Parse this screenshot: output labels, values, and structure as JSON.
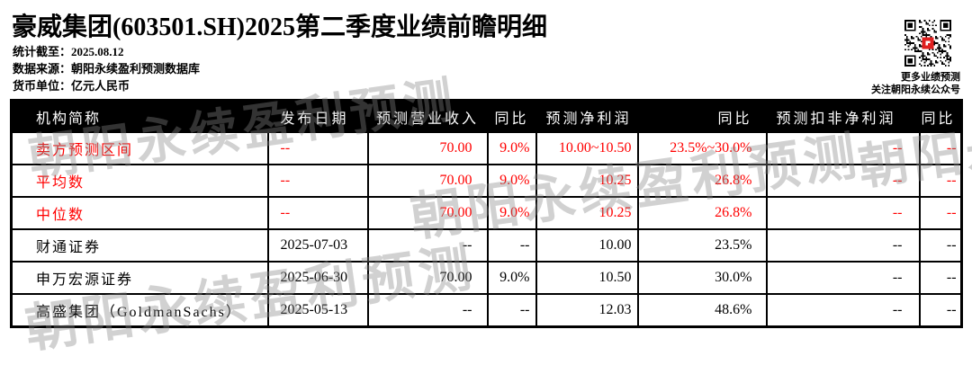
{
  "header": {
    "title": "豪威集团(603501.SH)2025第二季度业绩前瞻明细",
    "meta": [
      {
        "label": "统计截至：",
        "value": "2025.08.12"
      },
      {
        "label": "数据来源：",
        "value": "朝阳永续盈利预测数据库"
      },
      {
        "label": "货币单位：",
        "value": "亿元人民币"
      }
    ],
    "qr": {
      "caption1": "更多业绩预测",
      "caption2": "关注朝阳永续公众号"
    }
  },
  "watermark": {
    "text": "朝阳永续盈利预测"
  },
  "table": {
    "columns": [
      "机构简称",
      "发布日期",
      "预测营业收入",
      "同比",
      "预测净利润",
      "同比",
      "预测扣非净利润",
      "同比"
    ],
    "rows": [
      {
        "highlight": true,
        "cells": [
          "卖方预测区间",
          "--",
          "70.00",
          "9.0%",
          "10.00~10.50",
          "23.5%~30.0%",
          "--",
          "--"
        ]
      },
      {
        "highlight": true,
        "cells": [
          "平均数",
          "--",
          "70.00",
          "9.0%",
          "10.25",
          "26.8%",
          "--",
          "--"
        ]
      },
      {
        "highlight": true,
        "cells": [
          "中位数",
          "--",
          "70.00",
          "9.0%",
          "10.25",
          "26.8%",
          "--",
          "--"
        ]
      },
      {
        "highlight": false,
        "cells": [
          "财通证券",
          "2025-07-03",
          "--",
          "--",
          "10.00",
          "23.5%",
          "--",
          "--"
        ]
      },
      {
        "highlight": false,
        "cells": [
          "申万宏源证券",
          "2025-06-30",
          "70.00",
          "9.0%",
          "10.50",
          "30.0%",
          "--",
          "--"
        ]
      },
      {
        "highlight": false,
        "cells": [
          "高盛集团（GoldmanSachs）",
          "2025-05-13",
          "--",
          "--",
          "12.03",
          "48.6%",
          "--",
          "--"
        ]
      }
    ]
  },
  "colors": {
    "accent_red": "#ff0000",
    "header_bg": "#000000",
    "header_text": "#ffffff",
    "qr_logo_red": "#e02020"
  }
}
